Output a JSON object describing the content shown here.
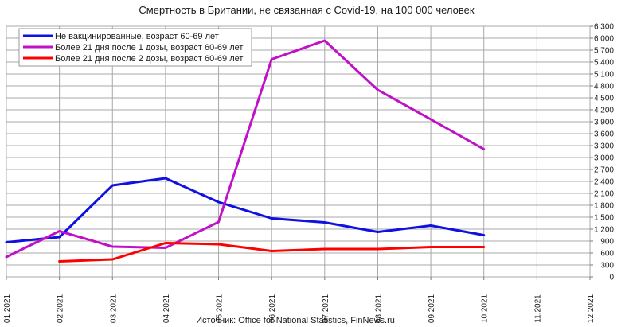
{
  "chart_data": {
    "type": "line",
    "title": "Смертность в Британии, не связанная с Covid-19, на 100 000 человек",
    "source": "Источник: Office for National Statistics, FinNews.ru",
    "x": [
      "01.2021",
      "02.2021",
      "03.2021",
      "04.2021",
      "05.2021",
      "06.2021",
      "07.2021",
      "08.2021",
      "09.2021",
      "10.2021",
      "11.2021",
      "12.2021"
    ],
    "yticks": [
      "0",
      "300",
      "600",
      "900",
      "1 200",
      "1 500",
      "1 800",
      "2 100",
      "2 400",
      "2 700",
      "3 000",
      "3 300",
      "3 600",
      "3 900",
      "4 200",
      "4 500",
      "4 800",
      "5 100",
      "5 400",
      "5 700",
      "6 000",
      "6 300"
    ],
    "ylim": [
      0,
      6300
    ],
    "grid": true,
    "legend_position": "top-left",
    "series": [
      {
        "name": "Не вакцинированные, возраст 60-69 лет",
        "color": "#1010e0",
        "values": [
          870,
          1000,
          2300,
          2480,
          1880,
          1470,
          1370,
          1130,
          1290,
          1050,
          null,
          null
        ]
      },
      {
        "name": "Более 21 дня после 1 дозы, возраст 60-69 лет",
        "color": "#c010c8",
        "values": [
          500,
          1150,
          760,
          730,
          1380,
          5470,
          5940,
          4700,
          3960,
          3210,
          null,
          null
        ]
      },
      {
        "name": "Более 21 дня после 2 дозы, возраст 60-69 лет",
        "color": "#ff0000",
        "values": [
          null,
          390,
          440,
          850,
          820,
          650,
          700,
          700,
          750,
          750,
          null,
          null
        ]
      }
    ]
  }
}
